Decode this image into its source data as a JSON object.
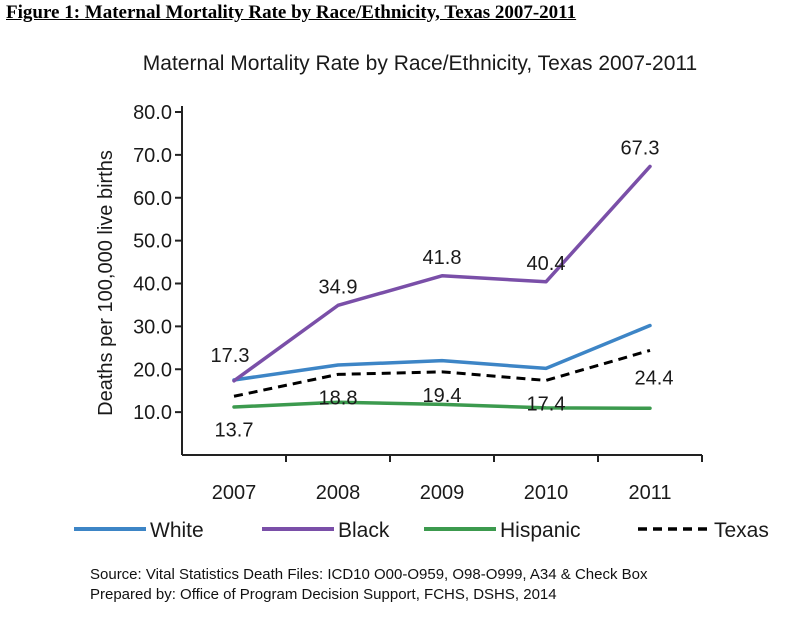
{
  "figure_title": "Figure 1: Maternal Mortality Rate by Race/Ethnicity, Texas 2007-2011",
  "source_line": "Source: Vital Statistics Death Files: ICD10 O00-O959, O98-O999, A34 & Check Box",
  "prepared_line": "Prepared by: Office of Program Decision Support, FCHS, DSHS, 2014",
  "chart_data": {
    "type": "line",
    "title": "Maternal Mortality Rate by Race/Ethnicity, Texas 2007-2011",
    "xlabel": "",
    "ylabel": "Deaths per 100,000 live births",
    "categories": [
      "2007",
      "2008",
      "2009",
      "2010",
      "2011"
    ],
    "ylim": [
      0,
      80
    ],
    "y_ticks": [
      "10.0",
      "20.0",
      "30.0",
      "40.0",
      "50.0",
      "60.0",
      "70.0",
      "80.0"
    ],
    "grid": false,
    "legend_position": "bottom",
    "series": [
      {
        "name": "White",
        "color": "#3d85c6",
        "dash": false,
        "values": [
          17.5,
          21.0,
          22.0,
          20.2,
          30.2
        ]
      },
      {
        "name": "Black",
        "color": "#7a4fa8",
        "dash": false,
        "values": [
          17.3,
          34.9,
          41.8,
          40.4,
          67.3
        ]
      },
      {
        "name": "Hispanic",
        "color": "#3c9a4e",
        "dash": false,
        "values": [
          11.2,
          12.3,
          11.8,
          11.0,
          10.9
        ]
      },
      {
        "name": "Texas",
        "color": "#000000",
        "dash": true,
        "values": [
          13.7,
          18.8,
          19.4,
          17.4,
          24.4
        ]
      }
    ],
    "data_labels": [
      {
        "text": "17.3",
        "series": "Black",
        "index": 0,
        "pos": "above"
      },
      {
        "text": "34.9",
        "series": "Black",
        "index": 1,
        "pos": "above"
      },
      {
        "text": "41.8",
        "series": "Black",
        "index": 2,
        "pos": "above"
      },
      {
        "text": "40.4",
        "series": "Black",
        "index": 3,
        "pos": "above"
      },
      {
        "text": "67.3",
        "series": "Black",
        "index": 4,
        "pos": "above"
      },
      {
        "text": "13.7",
        "series": "Texas",
        "index": 0,
        "pos": "below"
      },
      {
        "text": "18.8",
        "series": "Texas",
        "index": 1,
        "pos": "below"
      },
      {
        "text": "19.4",
        "series": "Texas",
        "index": 2,
        "pos": "below"
      },
      {
        "text": "17.4",
        "series": "Texas",
        "index": 3,
        "pos": "below"
      },
      {
        "text": "24.4",
        "series": "Texas",
        "index": 4,
        "pos": "below"
      }
    ]
  }
}
